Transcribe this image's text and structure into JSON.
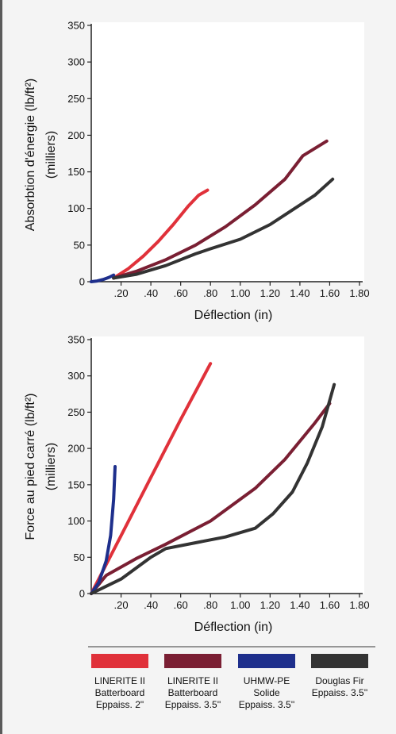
{
  "chart_data": [
    {
      "type": "line",
      "xlabel": "Déflection (in)",
      "ylabel": [
        "Absorbtion d'énergie (lb/ft²)",
        "(milliers)"
      ],
      "xlim": [
        0,
        1.8
      ],
      "ylim": [
        0,
        350
      ],
      "x_ticks": [
        ".20",
        ".40",
        ".60",
        ".80",
        "1.00",
        "1.20",
        "1.40",
        "1.60",
        "1.80"
      ],
      "y_ticks": [
        "0",
        "50",
        "100",
        "150",
        "200",
        "250",
        "300",
        "350"
      ],
      "grid": false,
      "series": [
        {
          "key": "liner2",
          "color": "#e0313a",
          "x": [
            0.15,
            0.25,
            0.35,
            0.45,
            0.55,
            0.65,
            0.72,
            0.78
          ],
          "y": [
            5,
            18,
            35,
            55,
            78,
            103,
            118,
            125
          ]
        },
        {
          "key": "liner35",
          "color": "#7a1f33",
          "x": [
            0.15,
            0.3,
            0.5,
            0.7,
            0.9,
            1.1,
            1.3,
            1.42,
            1.58
          ],
          "y": [
            5,
            14,
            30,
            50,
            75,
            105,
            140,
            172,
            192
          ]
        },
        {
          "key": "uhmw",
          "color": "#1e2f8c",
          "x": [
            0.0,
            0.04,
            0.08,
            0.12,
            0.15
          ],
          "y": [
            0,
            1,
            3,
            6,
            9
          ]
        },
        {
          "key": "fir",
          "color": "#333333",
          "x": [
            0.15,
            0.3,
            0.5,
            0.7,
            0.8,
            1.0,
            1.2,
            1.35,
            1.5,
            1.62
          ],
          "y": [
            5,
            10,
            22,
            38,
            45,
            58,
            78,
            98,
            118,
            140
          ]
        }
      ]
    },
    {
      "type": "line",
      "xlabel": "Déflection (in)",
      "ylabel": [
        "Force au pied carré (lb/ft²)",
        "(milliers)"
      ],
      "xlim": [
        0,
        1.8
      ],
      "ylim": [
        0,
        350
      ],
      "x_ticks": [
        ".20",
        ".40",
        ".60",
        ".80",
        "1.00",
        "1.20",
        "1.40",
        "1.60",
        "1.80"
      ],
      "y_ticks": [
        "0",
        "50",
        "100",
        "150",
        "200",
        "250",
        "300",
        "350"
      ],
      "grid": false,
      "series": [
        {
          "key": "liner2",
          "color": "#e0313a",
          "x": [
            0.0,
            0.2,
            0.4,
            0.6,
            0.8
          ],
          "y": [
            0,
            80,
            160,
            240,
            317
          ]
        },
        {
          "key": "liner35",
          "color": "#7a1f33",
          "x": [
            0.0,
            0.1,
            0.3,
            0.5,
            0.8,
            1.1,
            1.3,
            1.5,
            1.6
          ],
          "y": [
            0,
            25,
            48,
            68,
            100,
            145,
            185,
            235,
            262
          ]
        },
        {
          "key": "uhmw",
          "color": "#1e2f8c",
          "x": [
            0.0,
            0.05,
            0.1,
            0.13,
            0.15,
            0.16
          ],
          "y": [
            0,
            15,
            45,
            80,
            130,
            175
          ]
        },
        {
          "key": "fir",
          "color": "#333333",
          "x": [
            0.0,
            0.2,
            0.4,
            0.5,
            0.7,
            0.9,
            1.1,
            1.22,
            1.35,
            1.45,
            1.55,
            1.63
          ],
          "y": [
            0,
            20,
            50,
            62,
            70,
            78,
            90,
            110,
            140,
            180,
            230,
            288
          ]
        }
      ]
    }
  ],
  "legend": [
    {
      "key": "liner2",
      "color": "#e0313a",
      "lines": [
        "LINERITE II",
        "Batterboard",
        "Eppaiss. 2\""
      ]
    },
    {
      "key": "liner35",
      "color": "#7a1f33",
      "lines": [
        "LINERITE II",
        "Batterboard",
        "Eppaiss. 3.5''"
      ]
    },
    {
      "key": "uhmw",
      "color": "#1e2f8c",
      "lines": [
        "UHMW-PE",
        "Solide",
        "Eppaiss. 3.5''"
      ]
    },
    {
      "key": "fir",
      "color": "#333333",
      "lines": [
        "Douglas Fir",
        "Eppaiss. 3.5''"
      ]
    }
  ]
}
